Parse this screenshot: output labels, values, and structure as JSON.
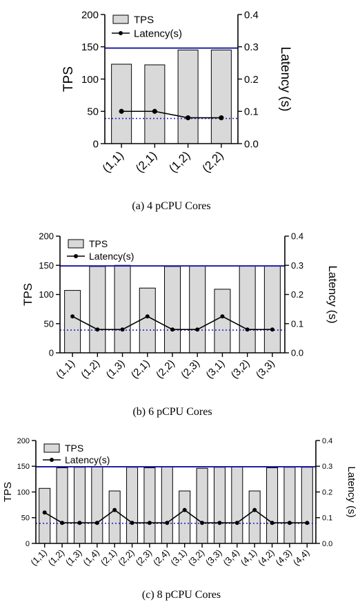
{
  "chart_data": [
    {
      "type": "bar",
      "caption": "(a)  4  pCPU  Cores",
      "categories": [
        "(1,1)",
        "(2,1)",
        "(1,2)",
        "(2,2)"
      ],
      "series": [
        {
          "name": "TPS",
          "axis": "left",
          "values": [
            123,
            122,
            145,
            145
          ]
        },
        {
          "name": "Latency(s)",
          "axis": "right",
          "values": [
            0.1,
            0.1,
            0.08,
            0.08
          ]
        }
      ],
      "ylabel": "TPS",
      "y2label": "Latency (s)",
      "ylim": [
        0,
        200
      ],
      "y2lim": [
        0,
        0.4
      ],
      "yticks": [
        "0",
        "50",
        "100",
        "150",
        "200"
      ],
      "y2ticks": [
        "0.0",
        "0.1",
        "0.2",
        "0.3",
        "0.4"
      ],
      "ref_lines": [
        {
          "style": "solid",
          "color": "#1f1fa8",
          "axis": "left",
          "value": 148
        },
        {
          "style": "dotted",
          "color": "#2222cc",
          "axis": "right",
          "value": 0.078
        }
      ],
      "legend": "top-left",
      "grid": false
    },
    {
      "type": "bar",
      "caption": "(b)  6  pCPU  Cores",
      "categories": [
        "(1,1)",
        "(1,2)",
        "(1,3)",
        "(2,1)",
        "(2,2)",
        "(2,3)",
        "(3,1)",
        "(3,2)",
        "(3,3)"
      ],
      "series": [
        {
          "name": "TPS",
          "axis": "left",
          "values": [
            107,
            148,
            150,
            111,
            148,
            149,
            109,
            149,
            149
          ]
        },
        {
          "name": "Latency(s)",
          "axis": "right",
          "values": [
            0.125,
            0.08,
            0.08,
            0.125,
            0.08,
            0.08,
            0.125,
            0.08,
            0.08
          ]
        }
      ],
      "ylabel": "TPS",
      "y2label": "Latency (s)",
      "ylim": [
        0,
        200
      ],
      "y2lim": [
        0,
        0.4
      ],
      "yticks": [
        "0",
        "50",
        "100",
        "150",
        "200"
      ],
      "y2ticks": [
        "0.0",
        "0.1",
        "0.2",
        "0.3",
        "0.4"
      ],
      "ref_lines": [
        {
          "style": "solid",
          "color": "#1f1fa8",
          "axis": "left",
          "value": 149
        },
        {
          "style": "dotted",
          "color": "#2222cc",
          "axis": "right",
          "value": 0.078
        }
      ],
      "legend": "top-left",
      "grid": false
    },
    {
      "type": "bar",
      "caption": "(c)  8  pCPU  Cores",
      "categories": [
        "(1,1)",
        "(1,2)",
        "(1,3)",
        "(1,4)",
        "(2,1)",
        "(2,2)",
        "(2,3)",
        "(2,4)",
        "(3,1)",
        "(3,2)",
        "(3,3)",
        "(3,4)",
        "(4,1)",
        "(4,2)",
        "(4,3)",
        "(4,4)"
      ],
      "series": [
        {
          "name": "TPS",
          "axis": "left",
          "values": [
            107,
            147,
            148,
            149,
            102,
            148,
            147,
            149,
            102,
            146,
            148,
            149,
            102,
            147,
            148,
            148
          ]
        },
        {
          "name": "Latency(s)",
          "axis": "right",
          "values": [
            0.12,
            0.08,
            0.08,
            0.08,
            0.13,
            0.08,
            0.08,
            0.08,
            0.13,
            0.08,
            0.08,
            0.08,
            0.13,
            0.08,
            0.08,
            0.08
          ]
        }
      ],
      "ylabel": "TPS",
      "y2label": "Latency (s)",
      "ylim": [
        0,
        200
      ],
      "y2lim": [
        0,
        0.4
      ],
      "yticks": [
        "0",
        "50",
        "100",
        "150",
        "200"
      ],
      "y2ticks": [
        "0.0",
        "0.1",
        "0.2",
        "0.3",
        "0.4"
      ],
      "ref_lines": [
        {
          "style": "solid",
          "color": "#1f1fa8",
          "axis": "left",
          "value": 149
        },
        {
          "style": "dotted",
          "color": "#2222cc",
          "axis": "right",
          "value": 0.078
        }
      ],
      "legend": "top-left",
      "grid": false
    }
  ],
  "colors": {
    "bar_fill": "#d9d9d9",
    "bar_stroke": "#000000",
    "line": "#000000",
    "ref_solid": "#1f1fa8",
    "ref_dotted": "#2222cc"
  }
}
